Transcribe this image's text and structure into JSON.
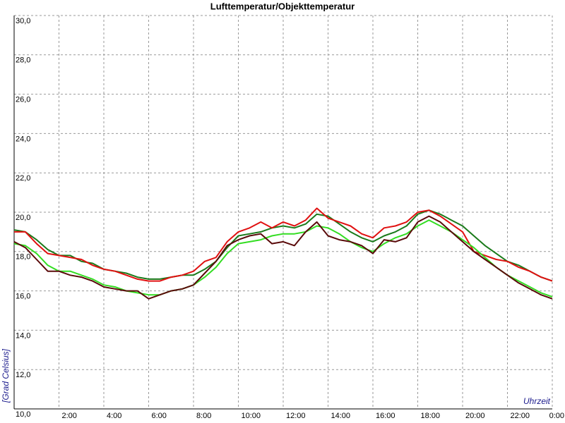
{
  "chart_data": {
    "type": "line",
    "title": "Lufttemperatur/Objekttemperatur",
    "y_label": "[Grad Celsius]",
    "x_label": "Uhrzeit",
    "x": [
      0,
      0.5,
      1,
      1.5,
      2,
      2.5,
      3,
      3.5,
      4,
      4.5,
      5,
      5.5,
      6,
      6.5,
      7,
      7.5,
      8,
      8.5,
      9,
      9.5,
      10,
      10.5,
      11,
      11.5,
      12,
      12.5,
      13,
      13.5,
      14,
      14.5,
      15,
      15.5,
      16,
      16.5,
      17,
      17.5,
      18,
      18.5,
      19,
      19.5,
      20,
      20.5,
      21,
      21.5,
      22,
      22.5,
      23,
      23.5,
      24
    ],
    "series": [
      {
        "color": "#1a7a1a",
        "values": [
          19.1,
          19.0,
          18.6,
          18.1,
          17.8,
          17.8,
          17.5,
          17.4,
          17.1,
          17.0,
          16.9,
          16.7,
          16.6,
          16.6,
          16.7,
          16.8,
          16.8,
          17.1,
          17.5,
          18.2,
          18.8,
          18.9,
          19.0,
          19.2,
          19.3,
          19.2,
          19.4,
          19.9,
          19.8,
          19.4,
          19.0,
          18.7,
          18.5,
          18.8,
          19.0,
          19.3,
          19.9,
          20.1,
          19.9,
          19.6,
          19.3,
          18.8,
          18.3,
          17.9,
          17.5,
          17.3,
          17.0,
          16.7,
          16.5
        ]
      },
      {
        "color": "#e01010",
        "values": [
          19.0,
          19.0,
          18.4,
          17.9,
          17.8,
          17.7,
          17.6,
          17.3,
          17.1,
          17.0,
          16.8,
          16.6,
          16.5,
          16.5,
          16.7,
          16.8,
          17.0,
          17.5,
          17.7,
          18.5,
          19.0,
          19.2,
          19.5,
          19.2,
          19.5,
          19.3,
          19.6,
          20.2,
          19.7,
          19.5,
          19.3,
          18.9,
          18.7,
          19.2,
          19.3,
          19.5,
          20.0,
          20.1,
          19.8,
          19.4,
          19.0,
          18.0,
          17.8,
          17.6,
          17.5,
          17.2,
          17.0,
          16.7,
          16.5
        ]
      },
      {
        "color": "#33dd22",
        "values": [
          18.4,
          18.3,
          17.9,
          17.3,
          17.0,
          17.0,
          16.8,
          16.6,
          16.3,
          16.2,
          16.0,
          15.9,
          15.8,
          15.8,
          16.0,
          16.1,
          16.3,
          16.7,
          17.2,
          17.9,
          18.4,
          18.5,
          18.6,
          18.8,
          18.9,
          18.9,
          19.0,
          19.3,
          19.2,
          18.9,
          18.5,
          18.2,
          18.0,
          18.4,
          18.7,
          18.9,
          19.3,
          19.6,
          19.3,
          19.0,
          18.6,
          18.2,
          17.7,
          17.2,
          16.8,
          16.5,
          16.2,
          15.9,
          15.7
        ]
      },
      {
        "color": "#5a0a0a",
        "values": [
          18.5,
          18.2,
          17.6,
          17.0,
          17.0,
          16.8,
          16.7,
          16.5,
          16.2,
          16.1,
          16.0,
          16.0,
          15.6,
          15.8,
          16.0,
          16.1,
          16.3,
          16.9,
          17.5,
          18.3,
          18.6,
          18.8,
          18.9,
          18.4,
          18.5,
          18.3,
          19.0,
          19.5,
          18.8,
          18.6,
          18.5,
          18.3,
          17.9,
          18.6,
          18.5,
          18.7,
          19.5,
          19.8,
          19.5,
          19.0,
          18.5,
          18.0,
          17.6,
          17.2,
          16.8,
          16.4,
          16.1,
          15.8,
          15.6
        ]
      }
    ],
    "xlim": [
      0,
      24
    ],
    "xticks": [
      {
        "value": 2,
        "label": "2:00"
      },
      {
        "value": 4,
        "label": "4:00"
      },
      {
        "value": 6,
        "label": "6:00"
      },
      {
        "value": 8,
        "label": "8:00"
      },
      {
        "value": 10,
        "label": "10:00"
      },
      {
        "value": 12,
        "label": "12:00"
      },
      {
        "value": 14,
        "label": "14:00"
      },
      {
        "value": 16,
        "label": "16:00"
      },
      {
        "value": 18,
        "label": "18:00"
      },
      {
        "value": 20,
        "label": "20:00"
      },
      {
        "value": 22,
        "label": "22:00"
      },
      {
        "value": 24,
        "label": "0:00"
      }
    ],
    "ylim": [
      10,
      30
    ],
    "yticks": [
      {
        "value": 10,
        "label": "10,0"
      },
      {
        "value": 12,
        "label": "12,0"
      },
      {
        "value": 14,
        "label": "14,0"
      },
      {
        "value": 16,
        "label": "16,0"
      },
      {
        "value": 18,
        "label": "18,0"
      },
      {
        "value": 20,
        "label": "20,0"
      },
      {
        "value": 22,
        "label": "22,0"
      },
      {
        "value": 24,
        "label": "24,0"
      },
      {
        "value": 26,
        "label": "26,0"
      },
      {
        "value": 28,
        "label": "28,0"
      },
      {
        "value": 30,
        "label": "30,0"
      }
    ],
    "grid": true
  }
}
